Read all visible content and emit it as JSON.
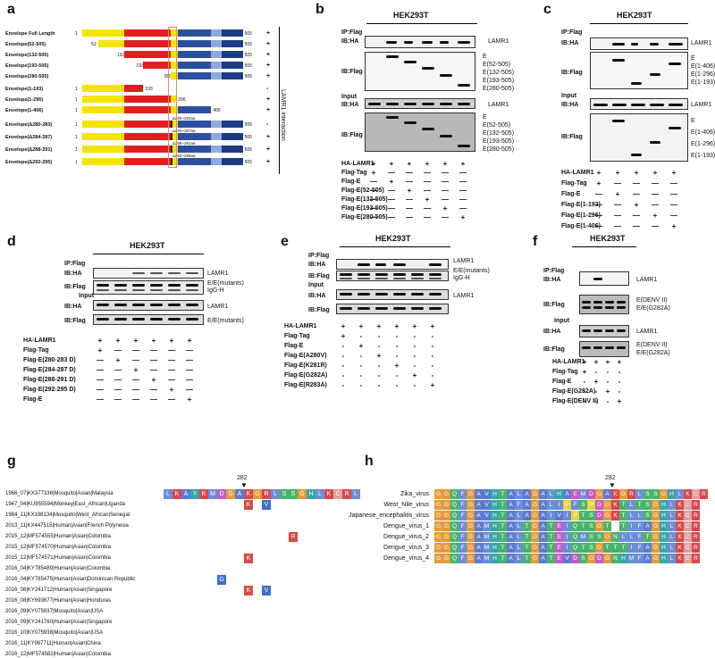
{
  "colors": {
    "yellow": "#f5e400",
    "red": "#e11e1e",
    "blue": "#2a4f9e",
    "lightblue": "#8fa9dc",
    "darkblue": "#1b3b84"
  },
  "panel_a": {
    "label": "a",
    "side_label": "LAMR1 interaction",
    "rows": [
      {
        "name": "Envelope Full Length",
        "start": "1",
        "end": "505",
        "result": "+"
      },
      {
        "name": "Envelope(52-505)",
        "start": "52",
        "end": "505",
        "result": "+"
      },
      {
        "name": "Envelope(132-505)",
        "start": "132",
        "end": "505",
        "result": "+"
      },
      {
        "name": "Envelope(193-505)",
        "start": "193",
        "end": "505",
        "result": "+"
      },
      {
        "name": "Envelope(280-505)",
        "start": "280",
        "end": "505",
        "result": "+"
      },
      {
        "name": "Envelope(1-193)",
        "start": "1",
        "end": "193",
        "result": "-"
      },
      {
        "name": "Envelope(1-296)",
        "start": "1",
        "end": "296",
        "result": "+"
      },
      {
        "name": "Envelope(1-406)",
        "start": "1",
        "end": "406",
        "result": "+"
      },
      {
        "name": "Envelope(Δ280-283)",
        "start": "1",
        "end": "505",
        "del": "Δ280~283aa",
        "result": "-"
      },
      {
        "name": "Envelope(Δ284-287)",
        "start": "1",
        "end": "505",
        "del": "Δ284~287aa",
        "result": "+"
      },
      {
        "name": "Envelope(Δ288-291)",
        "start": "1",
        "end": "505",
        "del": "Δ288~291aa",
        "result": "+"
      },
      {
        "name": "Envelope(Δ292-295)",
        "start": "1",
        "end": "505",
        "del": "Δ292~295aa",
        "result": "+"
      }
    ]
  },
  "panel_b": {
    "label": "b",
    "cell": "HEK293T",
    "ip": "IP:Flag",
    "ib_ha": "IB:HA",
    "ib_flag": "IB:Flag",
    "input": "Input",
    "lamr1": "LAMR1",
    "bands_ip": [
      "E",
      "E(52-505)",
      "E(132-505)",
      "E(193-505)",
      "E(280-505)"
    ],
    "bands_in": [
      "E",
      "E(52-505)",
      "E(132-505)",
      "E(193-505)",
      "E(280-505)"
    ],
    "rows": [
      {
        "name": "HA-LAMR1",
        "v": [
          "+",
          "+",
          "+",
          "+",
          "+",
          "+"
        ]
      },
      {
        "name": "Flag-Tag",
        "v": [
          "+",
          "—",
          "—",
          "—",
          "—",
          "—"
        ]
      },
      {
        "name": "Flag-E",
        "v": [
          "—",
          "+",
          "—",
          "—",
          "—",
          "—"
        ]
      },
      {
        "name": "Flag-E(52-505)",
        "v": [
          "—",
          "—",
          "+",
          "—",
          "—",
          "—"
        ]
      },
      {
        "name": "Flag-E(132-505)",
        "v": [
          "—",
          "—",
          "—",
          "+",
          "—",
          "—"
        ]
      },
      {
        "name": "Flag-E(193-505)",
        "v": [
          "—",
          "—",
          "—",
          "—",
          "+",
          "—"
        ]
      },
      {
        "name": "Flag-E(280-505)",
        "v": [
          "—",
          "—",
          "—",
          "—",
          "—",
          "+"
        ]
      }
    ]
  },
  "panel_c": {
    "label": "c",
    "cell": "HEK293T",
    "ip": "IP:Flag",
    "ib_ha": "IB:HA",
    "ib_flag": "IB:Flag",
    "input": "Input",
    "lamr1": "LAMR1",
    "bands": [
      "E",
      "E(1-406)",
      "E(1-296)",
      "E(1-193)"
    ],
    "rows": [
      {
        "name": "HA-LAMR1",
        "v": [
          "+",
          "+",
          "+",
          "+",
          "+"
        ]
      },
      {
        "name": "Flag-Tag",
        "v": [
          "+",
          "—",
          "—",
          "—",
          "—"
        ]
      },
      {
        "name": "Flag-E",
        "v": [
          "—",
          "+",
          "—",
          "—",
          "—"
        ]
      },
      {
        "name": "Flag-E(1-193)",
        "v": [
          "—",
          "—",
          "+",
          "—",
          "—"
        ]
      },
      {
        "name": "Flag-E(1-296)",
        "v": [
          "—",
          "—",
          "—",
          "+",
          "—"
        ]
      },
      {
        "name": "Flag-E(1-406)",
        "v": [
          "—",
          "—",
          "—",
          "—",
          "+"
        ]
      }
    ]
  },
  "panel_d": {
    "label": "d",
    "cell": "HEK293T",
    "ip": "IP:Flag",
    "ib_ha": "IB:HA",
    "ib_flag": "IB:Flag",
    "input": "Input",
    "lamr1": "LAMR1",
    "emut": "E/E(mutants)",
    "igg": "IgG-H",
    "rows": [
      {
        "name": "HA-LAMR1",
        "v": [
          "+",
          "+",
          "+",
          "+",
          "+",
          "+"
        ]
      },
      {
        "name": "Flag-Tag",
        "v": [
          "+",
          "—",
          "—",
          "—",
          "—",
          "—"
        ]
      },
      {
        "name": "Flag-E(280-283 D)",
        "v": [
          "—",
          "+",
          "—",
          "—",
          "—",
          "—"
        ]
      },
      {
        "name": "Flag-E(284-287 D)",
        "v": [
          "—",
          "—",
          "+",
          "—",
          "—",
          "—"
        ]
      },
      {
        "name": "Flag-E(288-291 D)",
        "v": [
          "—",
          "—",
          "—",
          "+",
          "—",
          "—"
        ]
      },
      {
        "name": "Flag-E(292-295 D)",
        "v": [
          "—",
          "—",
          "—",
          "—",
          "+",
          "—"
        ]
      },
      {
        "name": "Flag-E",
        "v": [
          "—",
          "—",
          "—",
          "—",
          "—",
          "+"
        ]
      }
    ]
  },
  "panel_e": {
    "label": "e",
    "cell": "HEK293T",
    "ip": "IP:Flag",
    "ib_ha": "IB:HA",
    "ib_flag": "IB:Flag",
    "input": "Input",
    "lamr1": "LAMR1",
    "emut": "E/E(mutants)",
    "igg": "IgG-H",
    "rows": [
      {
        "name": "HA-LAMR1",
        "v": [
          "+",
          "+",
          "+",
          "+",
          "+",
          "+"
        ]
      },
      {
        "name": "Flag-Tag",
        "v": [
          "+",
          "-",
          "-",
          "-",
          "-",
          "-"
        ]
      },
      {
        "name": "Flag-E",
        "v": [
          "-",
          "+",
          "-",
          "-",
          "-",
          "-"
        ]
      },
      {
        "name": "Flag-E(A280V)",
        "v": [
          "-",
          "-",
          "+",
          "-",
          "-",
          "-"
        ]
      },
      {
        "name": "Flag-E(K281R)",
        "v": [
          "-",
          "-",
          "-",
          "+",
          "-",
          "-"
        ]
      },
      {
        "name": "Flag-E(G282A)",
        "v": [
          "-",
          "-",
          "-",
          "-",
          "+",
          "-"
        ]
      },
      {
        "name": "Flag-E(R283A)",
        "v": [
          "-",
          "-",
          "-",
          "-",
          "-",
          "+"
        ]
      }
    ]
  },
  "panel_f": {
    "label": "f",
    "cell": "HEK293T",
    "ip": "IP:Flag",
    "ib_ha": "IB:HA",
    "ib_flag": "IB:Flag",
    "input": "Input",
    "lamr1": "LAMR1",
    "edenv": "E(DENV II)",
    "eg282": "E/E(G282A)",
    "rows": [
      {
        "name": "HA-LAMR1",
        "v": [
          "+",
          "+",
          "+",
          "+"
        ]
      },
      {
        "name": "Flag-Tag",
        "v": [
          "+",
          "-",
          "-",
          "-"
        ]
      },
      {
        "name": "Flag-E",
        "v": [
          "-",
          "+",
          "-",
          "-"
        ]
      },
      {
        "name": "Flag-E(G282A)",
        "v": [
          "-",
          "-",
          "+",
          "-"
        ]
      },
      {
        "name": "Flag-E(DENV II)",
        "v": [
          "-",
          "-",
          "-",
          "+"
        ]
      }
    ]
  },
  "panel_g": {
    "label": "g",
    "marker": "282",
    "consensus": "LKAYKMDGAKGRLSSGHLKCRL",
    "strains": [
      "1966_07|KX377336|Mosquito|Asian|Malaysia",
      "1947_04|KU955594|Monkey|East_African|Uganda",
      "1984_11|KX198134|Mosquito|West_African|Senegal",
      "2013_11|KX447515|Human|Asian|French Polynesia",
      "2015_12|MF574555|Human|Asian|Colombia",
      "2015_12|MF574570|Human|Asian|Colombia",
      "2015_12|MF574571|Human|Asian|Colombia",
      "2016_04|KY785489|Human|Asian|Colombia",
      "2016_04|KY785475|Human|Asian|Dominican Republic",
      "2016_08|KY241712|Human|Asian|Singapore",
      "2016_08|KY693677|Human|Asian|Honduras",
      "2016_09|KY075937|Mosquito|Asian|USA",
      "2016_09|KY241760|Human|Asian|Singapore",
      "2016_10|KY075938|Mosquito|Asian|USA",
      "2016_11|KY967711|Human|Asian|China",
      "2016_12|MF574582|Human|Asian|Colombia"
    ]
  },
  "panel_h": {
    "label": "h",
    "marker": "282",
    "seqs": [
      {
        "name": "Zika_virus",
        "seq": "GGQFGAVHTALAGALHAEMDGAKGRLSSGHLKCR"
      },
      {
        "name": "West_Nile_virus",
        "seq": "GGQFGAVHTAFAGALIPFSPDGKTLTSGHLKCR"
      },
      {
        "name": "Japanese_encephalitis_virus",
        "seq": "GGQFGAVHTALAGAIVIPTSDGKTLLSGHLKCR"
      },
      {
        "name": "Dengue_virus_1",
        "seq": "GGQFGAMHTALTGATEIQTSGT-TIFAGHLKCR"
      },
      {
        "name": "Dengue_virus_2",
        "seq": "GGQFGAMHTALTGATEIQMSSGNLLFTGHLKCR"
      },
      {
        "name": "Dengue_virus_3",
        "seq": "GGQFGAMHTALTGATEIQTSGTTTIFAGHLKCR"
      },
      {
        "name": "Dengue_virus_4",
        "seq": "GGQFGAMHTALTGATEVDSGDGNHMFAGHLKCR"
      }
    ]
  }
}
